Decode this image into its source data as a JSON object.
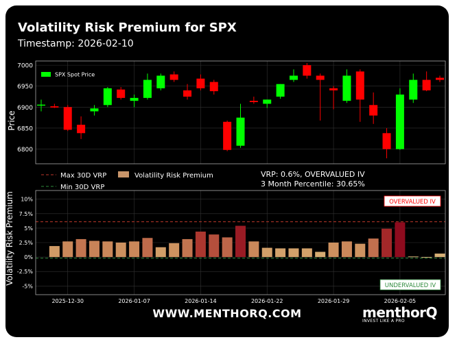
{
  "header": {
    "title": "Volatility Risk Premium for SPX",
    "timestamp": "Timestamp: 2026-02-10"
  },
  "vrp_info": {
    "line1": "VRP: 0.6%, OVERVALUED IV",
    "line2": "3 Month Percentile: 30.65%"
  },
  "footer": {
    "url": "WWW.MENTHORQ.COM",
    "brand": "menthorQ",
    "tagline": "INVEST LIKE A PRO"
  },
  "colors": {
    "up": "#00ff00",
    "down": "#ff0000",
    "max_line": "#c0392b",
    "min_line": "#2e8b3d",
    "low_bar": "#d9b97c",
    "high_bar": "#8e0b1e"
  },
  "chart_data": [
    {
      "type": "candlestick",
      "ylabel": "Price",
      "ylim": [
        6765,
        7010
      ],
      "yticks": [
        "6800",
        "6850",
        "6900",
        "6950",
        "7000"
      ],
      "legend": [
        "SPX Spot Price"
      ],
      "legend_placement": "top-left",
      "grid": true,
      "dates": [
        "2025-12-26",
        "2025-12-29",
        "2025-12-30",
        "2025-12-31",
        "2026-01-02",
        "2026-01-05",
        "2026-01-06",
        "2026-01-07",
        "2026-01-08",
        "2026-01-09",
        "2026-01-12",
        "2026-01-13",
        "2026-01-14",
        "2026-01-15",
        "2026-01-16",
        "2026-01-20",
        "2026-01-21",
        "2026-01-22",
        "2026-01-23",
        "2026-01-26",
        "2026-01-27",
        "2026-01-28",
        "2026-01-29",
        "2026-01-30",
        "2026-02-02",
        "2026-02-03",
        "2026-02-04",
        "2026-02-05",
        "2026-02-06",
        "2026-02-09",
        "2026-02-10"
      ],
      "ohlc": [
        [
          6904,
          6918,
          6890,
          6906
        ],
        [
          6902,
          6908,
          6898,
          6899
        ],
        [
          6900,
          6905,
          6843,
          6846
        ],
        [
          6858,
          6878,
          6824,
          6838
        ],
        [
          6890,
          6905,
          6880,
          6897
        ],
        [
          6905,
          6948,
          6900,
          6945
        ],
        [
          6942,
          6948,
          6918,
          6922
        ],
        [
          6915,
          6930,
          6900,
          6922
        ],
        [
          6922,
          6980,
          6918,
          6965
        ],
        [
          6945,
          6980,
          6940,
          6975
        ],
        [
          6978,
          6985,
          6960,
          6965
        ],
        [
          6940,
          6955,
          6918,
          6925
        ],
        [
          6968,
          6978,
          6940,
          6945
        ],
        [
          6960,
          6965,
          6930,
          6938
        ],
        [
          6865,
          6868,
          6795,
          6798
        ],
        [
          6808,
          6908,
          6803,
          6875
        ],
        [
          6915,
          6925,
          6908,
          6912
        ],
        [
          6908,
          6918,
          6898,
          6918
        ],
        [
          6925,
          6955,
          6920,
          6955
        ],
        [
          6965,
          6990,
          6960,
          6975
        ],
        [
          7000,
          7005,
          6968,
          6975
        ],
        [
          6975,
          6980,
          6868,
          6965
        ],
        [
          6945,
          6950,
          6895,
          6940
        ],
        [
          6915,
          6990,
          6910,
          6975
        ],
        [
          6985,
          6990,
          6865,
          6918
        ],
        [
          6905,
          6935,
          6860,
          6880
        ],
        [
          6838,
          6850,
          6778,
          6800
        ],
        [
          6800,
          6945,
          6798,
          6930
        ],
        [
          6918,
          6980,
          6910,
          6965
        ],
        [
          6965,
          6985,
          6938,
          6940
        ],
        [
          6970,
          6975,
          6960,
          6965
        ]
      ]
    },
    {
      "type": "bar",
      "ylabel": "Volatility Risk Premium",
      "ylim": [
        -6.5,
        11.5
      ],
      "yticks": [
        "-5%",
        "-2.5%",
        "0%",
        "2.5%",
        "5%",
        "7.5%",
        "10%"
      ],
      "xticks": [
        "2025-12-30",
        "2026-01-07",
        "2026-01-14",
        "2026-01-22",
        "2026-01-29",
        "2026-02-05"
      ],
      "legend": [
        "Max 30D VRP",
        "Min 30D VRP",
        "Volatility Risk Premium"
      ],
      "legend_placement": "top-left",
      "max_30d_vrp": 6.1,
      "min_30d_vrp": -0.2,
      "annotations": [
        "OVERVALUED IV",
        "UNDERVALUED IV"
      ],
      "dates": [
        "2025-12-29",
        "2025-12-30",
        "2025-12-31",
        "2026-01-02",
        "2026-01-05",
        "2026-01-06",
        "2026-01-07",
        "2026-01-08",
        "2026-01-09",
        "2026-01-12",
        "2026-01-13",
        "2026-01-14",
        "2026-01-15",
        "2026-01-16",
        "2026-01-20",
        "2026-01-21",
        "2026-01-22",
        "2026-01-23",
        "2026-01-26",
        "2026-01-27",
        "2026-01-28",
        "2026-01-29",
        "2026-01-30",
        "2026-02-02",
        "2026-02-03",
        "2026-02-04",
        "2026-02-05",
        "2026-02-06",
        "2026-02-09",
        "2026-02-10"
      ],
      "values": [
        1.9,
        2.7,
        3.1,
        2.8,
        2.7,
        2.5,
        2.7,
        3.3,
        1.7,
        2.4,
        3.1,
        4.4,
        3.9,
        3.4,
        5.4,
        2.7,
        1.6,
        1.5,
        1.5,
        1.5,
        0.9,
        2.5,
        2.7,
        2.3,
        3.2,
        4.9,
        6.0,
        0.1,
        -0.1,
        0.6
      ]
    }
  ]
}
